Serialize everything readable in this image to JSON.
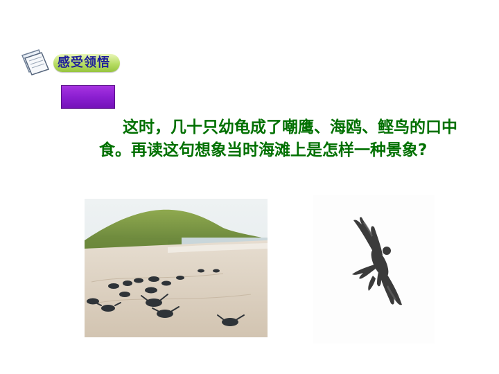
{
  "header": {
    "icon": "notes-icon",
    "title": "感受领悟",
    "badge_color": "#b7dd63",
    "title_color": "#1f1f9a"
  },
  "decor": {
    "bar_color": "#8b1fd1"
  },
  "question": {
    "text": "这时，几十只幼龟成了嘲鹰、海鸥、鲣鸟的口中食。再读这句想象当时海滩上是怎样一种景象?",
    "color": "#007000"
  },
  "images": {
    "beach": "beach-hatchlings-photo",
    "eagle": "eagle-photo"
  }
}
